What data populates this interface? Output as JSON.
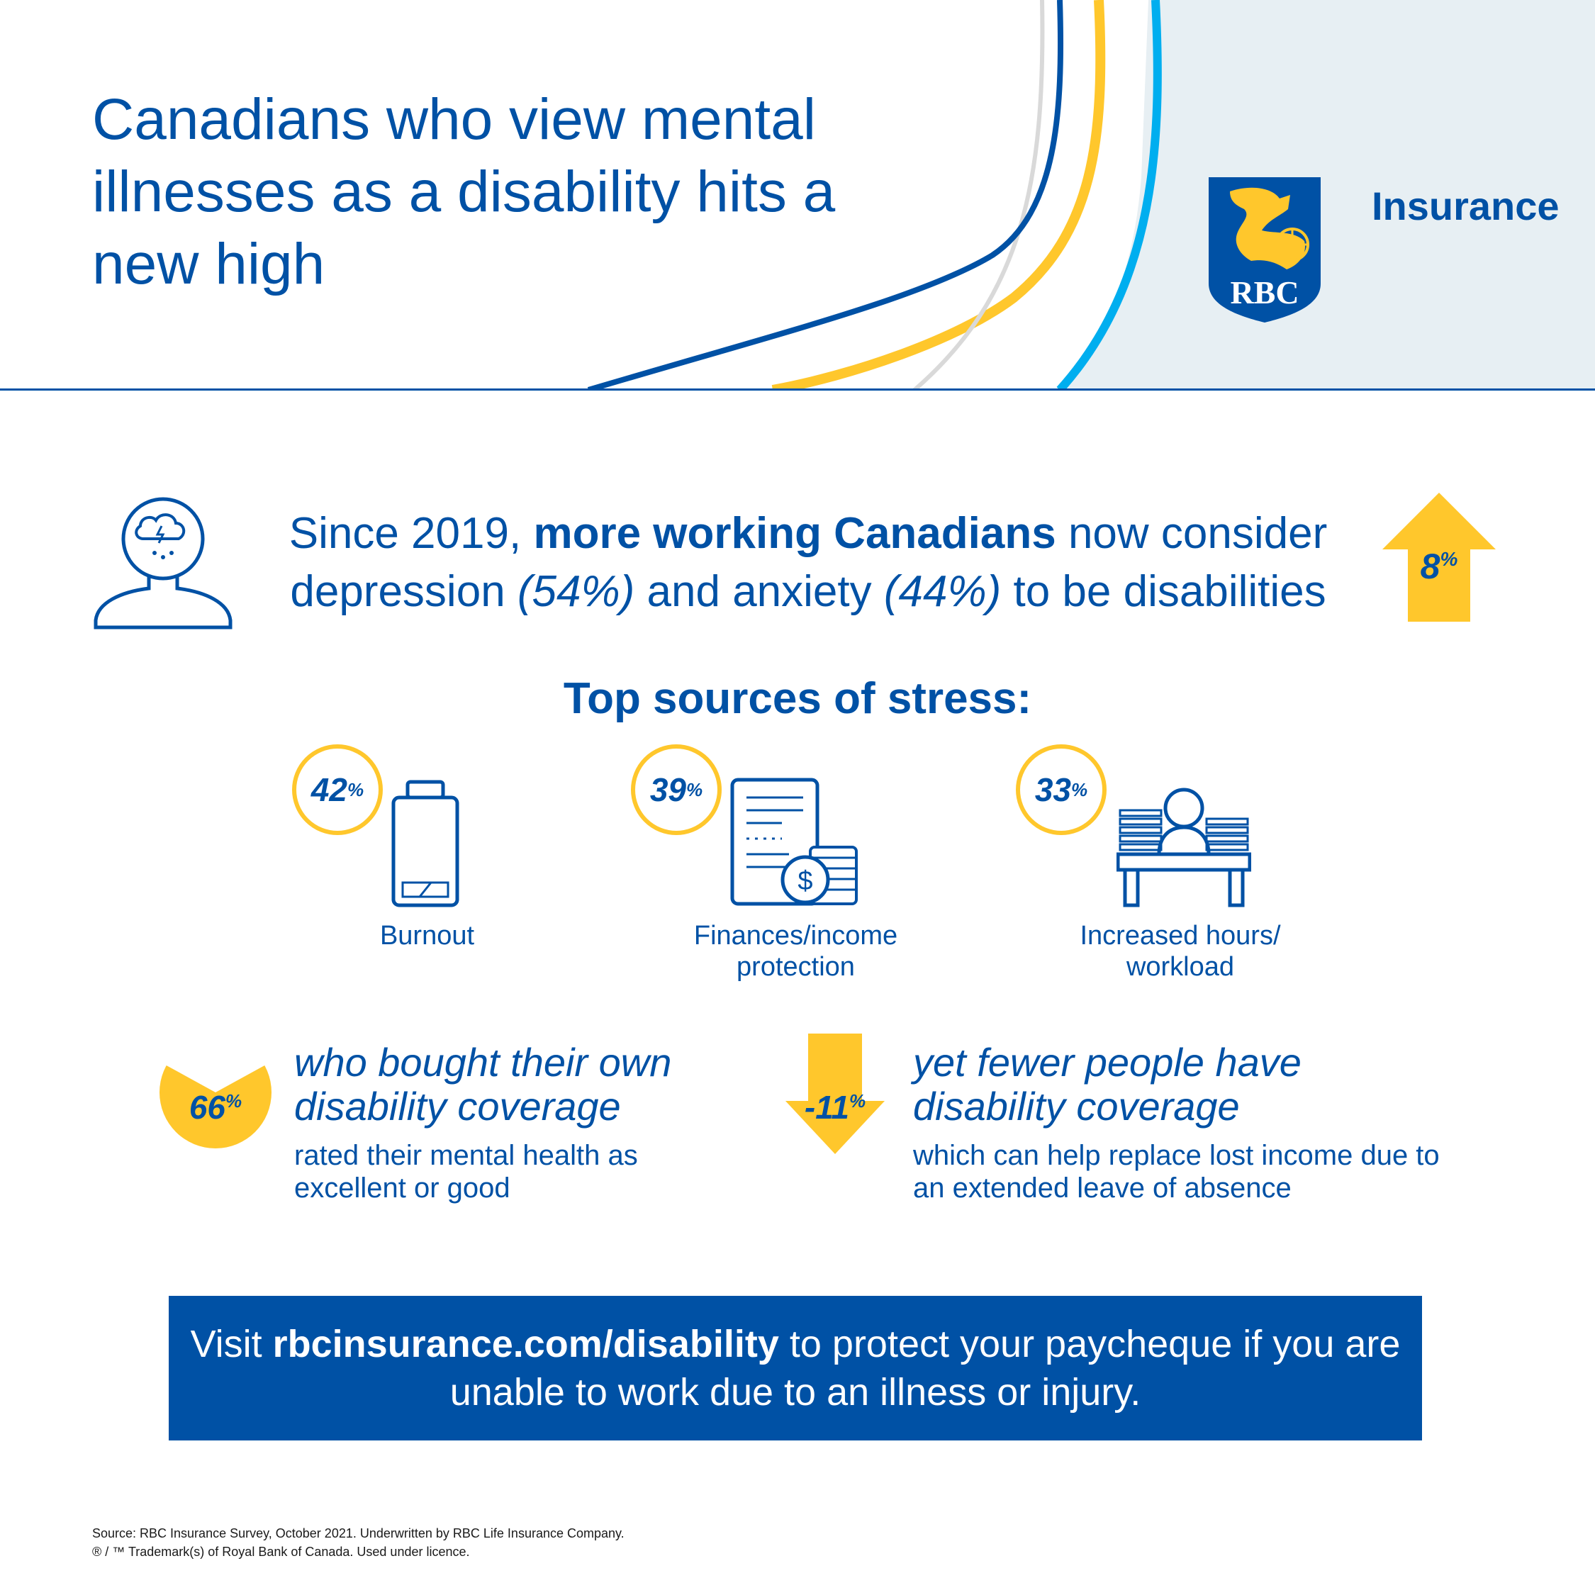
{
  "header": {
    "title": "Canadians who view mental illnesses as a disability hits a new high",
    "brand": "Insurance",
    "logo_text": "RBC",
    "colors": {
      "blue": "#0051a5",
      "yellow": "#ffc72c",
      "light_blue": "#00aeef",
      "grey": "#d9d9d9",
      "pale": "#e7eff3"
    }
  },
  "stat": {
    "prefix": "Since 2019, ",
    "bold": "more working Canadians",
    "middle": " now consider depression ",
    "depression_pct": "(54%)",
    "and": " and anxiety ",
    "anxiety_pct": "(44%)",
    "suffix": " to be disabilities",
    "increase_value": "8",
    "increase_unit": "%"
  },
  "stress": {
    "heading": "Top sources of stress:",
    "items": [
      {
        "value": "42",
        "unit": "%",
        "label": "Burnout"
      },
      {
        "value": "39",
        "unit": "%",
        "label": "Finances/income protection"
      },
      {
        "value": "33",
        "unit": "%",
        "label": "Increased hours/ workload"
      }
    ]
  },
  "coverage": {
    "left": {
      "value": "66",
      "unit": "%",
      "fraction": 0.66,
      "title": "who bought their own disability coverage",
      "subtitle": "rated their mental health as excellent or good"
    },
    "right": {
      "value": "-11",
      "unit": "%",
      "title": "yet fewer people have disability coverage",
      "subtitle": "which can help replace lost income due to an extended leave of absence"
    }
  },
  "cta": {
    "prefix": "Visit ",
    "link": "rbcinsurance.com/disability",
    "suffix": " to protect your paycheque if you are unable to work due to an illness or injury."
  },
  "footer": {
    "line1": "Source: RBC Insurance Survey, October 2021. Underwritten by RBC Life Insurance Company.",
    "line2": "® / ™ Trademark(s) of Royal Bank of Canada. Used under licence."
  }
}
